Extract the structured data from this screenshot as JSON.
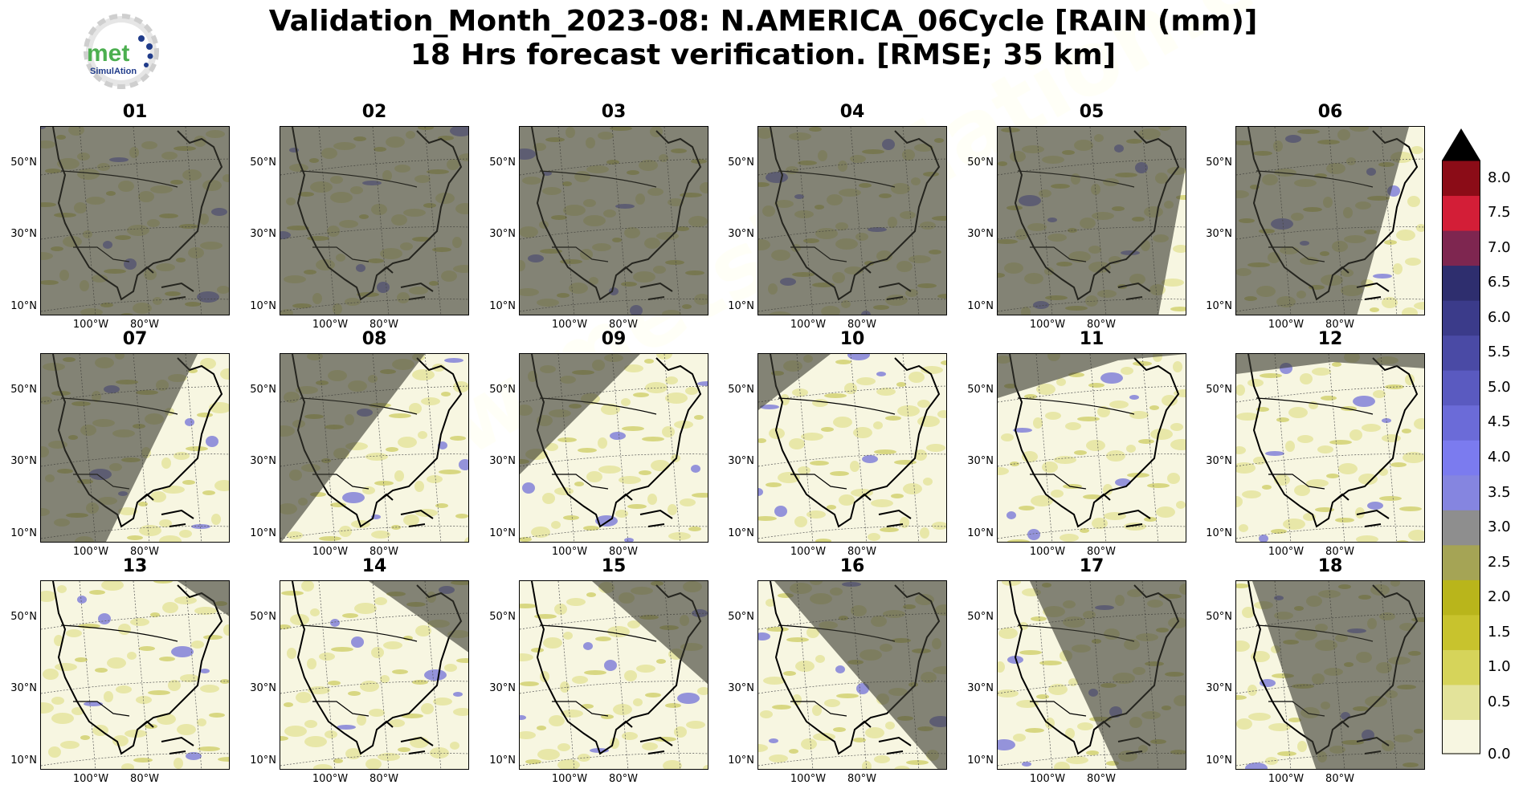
{
  "title": {
    "line1": "Validation_Month_2023-08: N.AMERICA_06Cycle [RAIN (mm)]",
    "line2": "18 Hrs forecast verification.  [RMSE; 35 km]"
  },
  "logo": {
    "text_top": "met",
    "text_bottom": "SimulAtion",
    "icon": "gear-icon"
  },
  "lat_labels": [
    "50°N",
    "30°N",
    "10°N"
  ],
  "lon_labels": [
    "100°W",
    "80°W"
  ],
  "panels": [
    {
      "label": "01",
      "night": "full"
    },
    {
      "label": "02",
      "night": "full"
    },
    {
      "label": "03",
      "night": "full"
    },
    {
      "label": "04",
      "night": "full"
    },
    {
      "label": "05",
      "night": "mostly"
    },
    {
      "label": "06",
      "night": "left-large"
    },
    {
      "label": "07",
      "night": "left-half"
    },
    {
      "label": "08",
      "night": "left-smaller"
    },
    {
      "label": "09",
      "night": "top-left"
    },
    {
      "label": "10",
      "night": "top-left-corner"
    },
    {
      "label": "11",
      "night": "top-edge"
    },
    {
      "label": "12",
      "night": "top-strip"
    },
    {
      "label": "13",
      "night": "top-right-corner"
    },
    {
      "label": "14",
      "night": "top-right"
    },
    {
      "label": "15",
      "night": "right-upper"
    },
    {
      "label": "16",
      "night": "right-half"
    },
    {
      "label": "17",
      "night": "right-large"
    },
    {
      "label": "18",
      "night": "right-most"
    }
  ],
  "colorbar": {
    "levels": [
      "0.0",
      "0.5",
      "1.0",
      "1.5",
      "2.0",
      "2.5",
      "3.0",
      "3.5",
      "4.0",
      "4.5",
      "5.0",
      "5.5",
      "6.0",
      "6.5",
      "7.0",
      "7.5",
      "8.0"
    ],
    "colors": [
      "#f7f6e1",
      "#e3e39a",
      "#d6d45a",
      "#c8c32d",
      "#b9b51b",
      "#a5a455",
      "#8e8e8e",
      "#8585e0",
      "#7b7bef",
      "#6b6bd8",
      "#5a5ac0",
      "#4a4aa5",
      "#3b3b8a",
      "#2e2e6e",
      "#7e2650",
      "#d31e37",
      "#8b0c17"
    ],
    "extend_color": "#000000"
  },
  "watermark": "www.metsimulation.com"
}
